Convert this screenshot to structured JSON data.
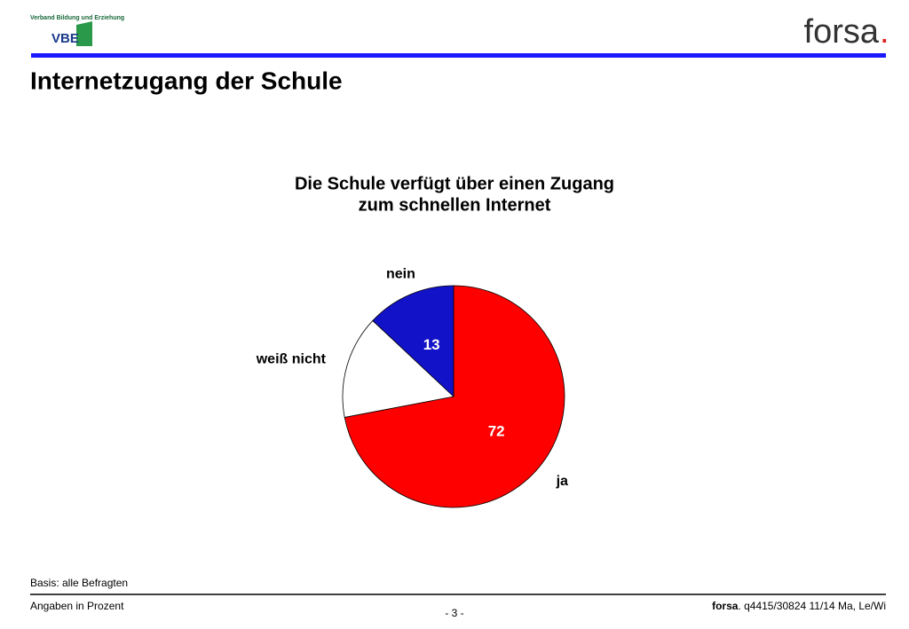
{
  "header": {
    "logo_text": "Verband Bildung und Erziehung",
    "logo_abbr": "VBE",
    "brand": "forsa",
    "brand_dot": ".",
    "title": "Internetzugang der Schule"
  },
  "chart_data": {
    "type": "pie",
    "title": [
      "Die Schule verfügt über einen Zugang",
      "zum schnellen Internet"
    ],
    "categories": [
      "ja",
      "weiß nicht",
      "nein"
    ],
    "values": [
      72,
      15,
      13
    ],
    "value_labels": [
      "72",
      null,
      "13"
    ],
    "colors": [
      "#ff0000",
      "#ffffff",
      "#1212c8"
    ]
  },
  "footer": {
    "basis": "Basis: alle Befragten",
    "unit": "Angaben in Prozent",
    "page": "- 3 -",
    "source_brand": "forsa",
    "source": ". q4415/30824 11/14 Ma, Le/Wi"
  }
}
